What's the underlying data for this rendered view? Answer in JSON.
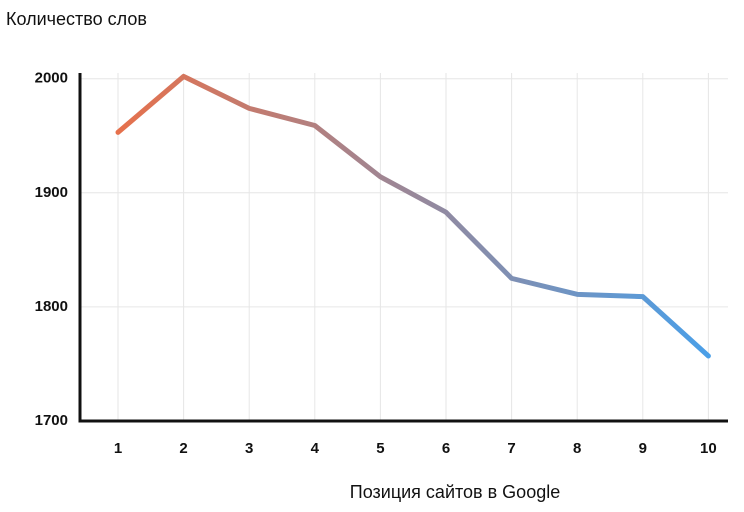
{
  "chart_data": {
    "type": "line",
    "y_label": "Количество слов",
    "x_label": "Позиция сайтов в Google",
    "categories": [
      "1",
      "2",
      "3",
      "4",
      "5",
      "6",
      "7",
      "8",
      "9",
      "10"
    ],
    "series": [
      {
        "values": [
          1953,
          2002,
          1974,
          1959,
          1914,
          1883,
          1825,
          1811,
          1809,
          1757
        ]
      }
    ],
    "colors": [
      "#e8704a",
      "#4a9fe8"
    ],
    "ylim": [
      1700,
      2005
    ],
    "yticks": [
      1700,
      1800,
      1900,
      2000
    ],
    "grid": true
  }
}
